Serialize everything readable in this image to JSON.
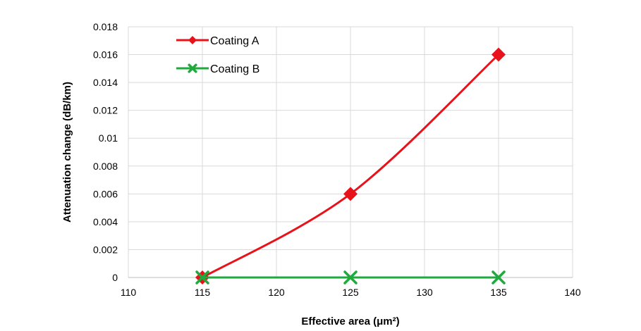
{
  "chart_data": {
    "type": "line",
    "title": "",
    "xlabel": "Effective area (μm²)",
    "ylabel": "Attenuation change (dB/km)",
    "xlim": [
      110,
      140
    ],
    "ylim": [
      0,
      0.018
    ],
    "x_ticks": [
      110,
      115,
      120,
      125,
      130,
      135,
      140
    ],
    "y_ticks": [
      0,
      0.002,
      0.004,
      0.006,
      0.008,
      0.01,
      0.012,
      0.014,
      0.016,
      0.018
    ],
    "x_tick_labels": [
      "110",
      "115",
      "120",
      "125",
      "130",
      "135",
      "140"
    ],
    "y_tick_labels": [
      "0",
      "0.002",
      "0.004",
      "0.006",
      "0.008",
      "0.01",
      "0.012",
      "0.014",
      "0.016",
      "0.018"
    ],
    "grid": true,
    "legend_position": "top-left",
    "series": [
      {
        "name": "Coating A",
        "color": "#e8131a",
        "marker": "diamond",
        "smooth": true,
        "x": [
          115,
          125,
          135
        ],
        "y": [
          0,
          0.006,
          0.016
        ]
      },
      {
        "name": "Coating B",
        "color": "#1eaa3c",
        "marker": "x",
        "smooth": false,
        "x": [
          115,
          125,
          135
        ],
        "y": [
          0,
          0,
          0
        ]
      }
    ]
  }
}
